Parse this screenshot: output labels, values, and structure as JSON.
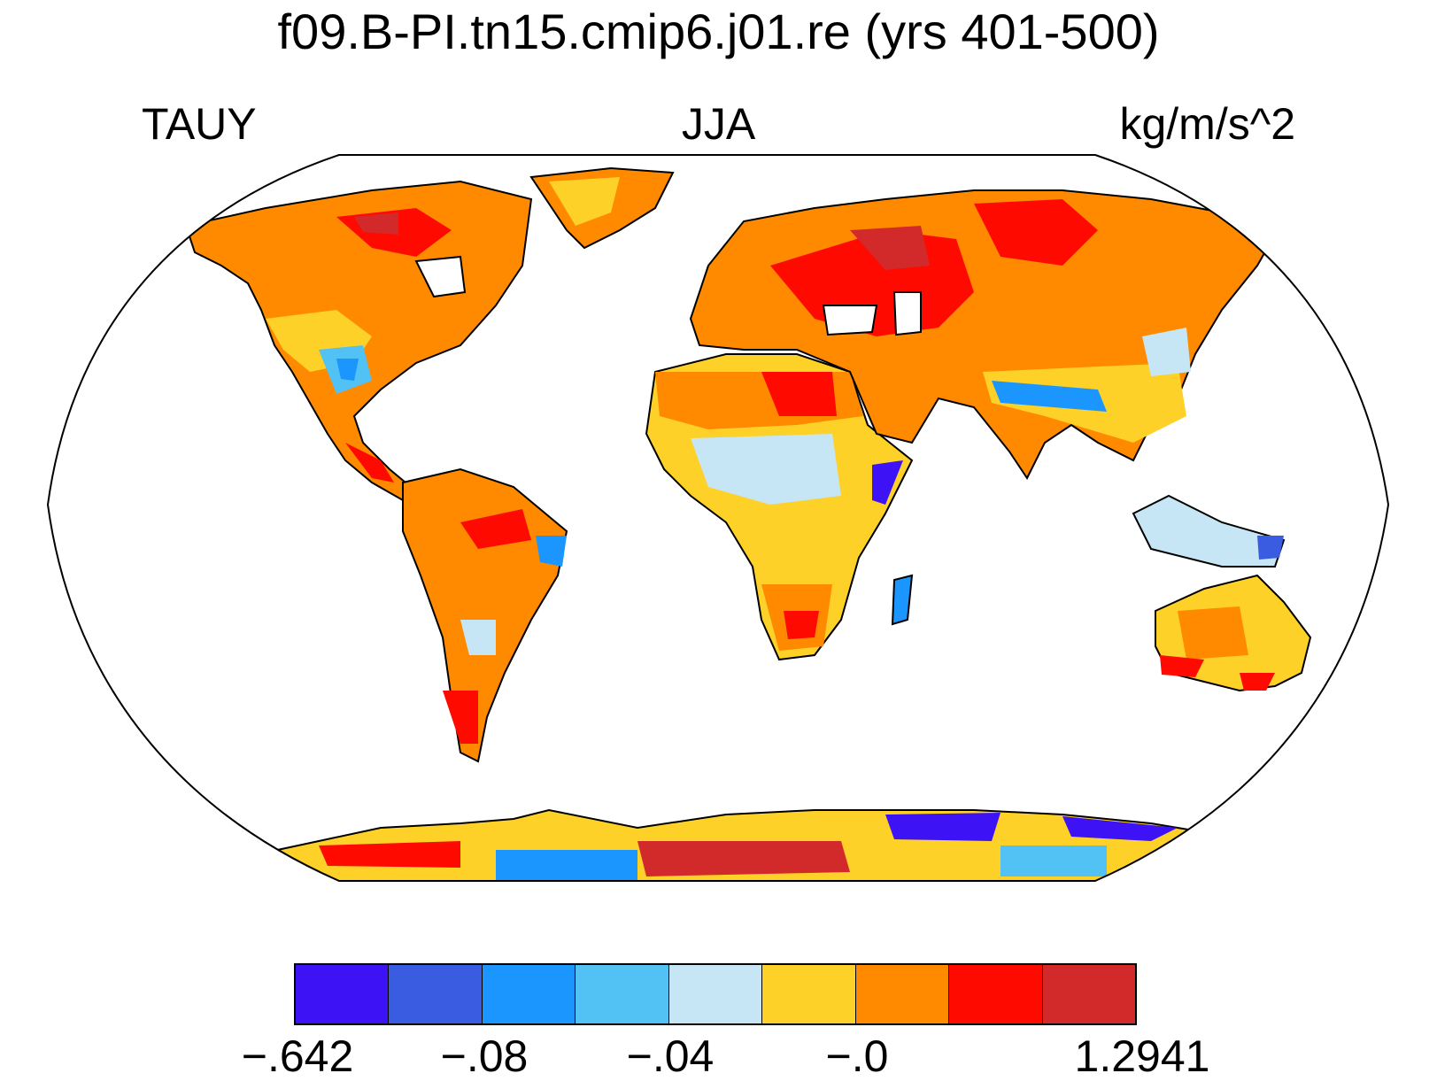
{
  "title": "f09.B-PI.tn15.cmip6.j01.re (yrs 401-500)",
  "subtitle": {
    "left": "TAUY",
    "center": "JJA",
    "right": "kg/m/s^2"
  },
  "map": {
    "projection": "robinson",
    "field_description_colors": {
      "ocean": "#ffffff",
      "coastline": "#000000"
    }
  },
  "colorbar": {
    "colors": [
      "#3d12f5",
      "#3a5ce0",
      "#1b96ff",
      "#52c1f3",
      "#c6e6f6",
      "#fdd127",
      "#ff8a00",
      "#ff0a00",
      "#d22a2a"
    ],
    "labels": [
      "−.642",
      "−.08",
      "−.04",
      "−.0",
      "1.2941"
    ]
  }
}
